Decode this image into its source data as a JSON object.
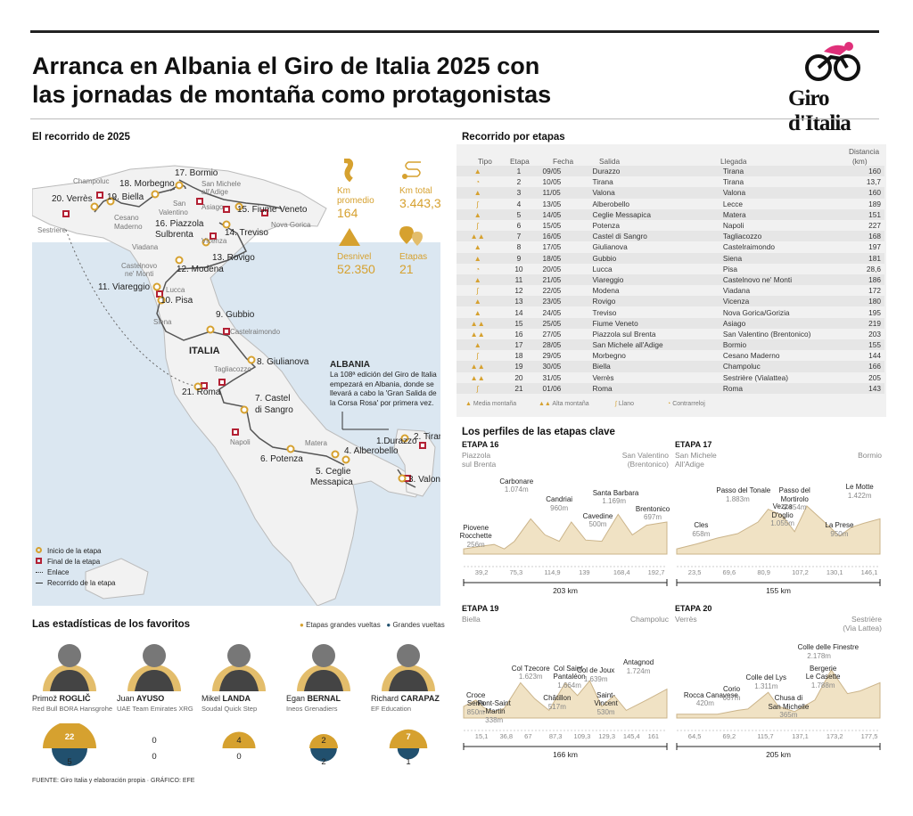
{
  "header": {
    "title_line1": "Arranca en Albania el Giro de Italia 2025 con",
    "title_line2": "las jornadas de montaña como protagonistas",
    "logo_text": "Giro d'Italia"
  },
  "map": {
    "heading": "El recorrido de 2025",
    "stats": {
      "km_avg_label": "Km promedio",
      "km_avg_value": "164",
      "km_total_label": "Km total",
      "km_total_value": "3.443,3",
      "desnivel_label": "Desnivel",
      "desnivel_value": "52.350",
      "etapas_label": "Etapas",
      "etapas_value": "21"
    },
    "country": "ITALIA",
    "albania_title": "ALBANIA",
    "albania_text_1": "La 108ª edición del Giro de Italia",
    "albania_text_2": "empezará en Albania, donde se",
    "albania_text_3": "llevará a cabo la 'Gran Salida de",
    "albania_text_4": "la Corsa Rosa' por primera vez.",
    "labels": {
      "l17": "17. Bormio",
      "l18": "18. Morbegno",
      "l19": "19. Biella",
      "l20": "20. Verrès",
      "l15": "15. Fiume Veneto",
      "l16a": "16. Piazzola",
      "l16b": "Sulbrenta",
      "l14": "14. Treviso",
      "l13": "13. Rovigo",
      "l12": "12. Modena",
      "l11": "11. Viareggio",
      "l10": "10. Pisa",
      "l9": "9. Gubbio",
      "l8": "8. Giulianova",
      "l21": "21. Roma",
      "l7a": "7. Castel",
      "l7b": "di Sangro",
      "l6": "6. Potenza",
      "l5a": "5. Ceglie",
      "l5b": "Messapica",
      "l4": "4. Alberobello",
      "l1": "1.Durazzo",
      "l2": "2. Tirana",
      "l3": "3. Valona"
    },
    "grey_labels": {
      "champoluc": "Champoluc",
      "sestriere": "Sestriere",
      "cesano1": "Cesano",
      "cesano2": "Maderno",
      "sanmichele1": "San Michele",
      "sanmichele2": "all'Adige",
      "sanvalentino1": "San",
      "sanvalentino2": "Valentino",
      "asiago": "Asiago",
      "novagorica": "Nova Gorica",
      "vicenza": "Vicenza",
      "viadana": "Viadana",
      "castelnovo1": "Castelnovo",
      "castelnovo2": "ne' Monti",
      "lucca": "Lucca",
      "siena": "Siena",
      "castelraimondo": "Castelraimondo",
      "tagliacozzo": "Tagliacozzo",
      "napoli": "Napoli",
      "matera": "Matera"
    },
    "legend": {
      "inicio": "Inicio de la etapa",
      "final": "Final de la etapa",
      "enlace": "Enlace",
      "recorrido": "Recorrido de la etapa"
    }
  },
  "stages_table": {
    "heading": "Recorrido por etapas",
    "headers": {
      "tipo": "Tipo",
      "etapa": "Etapa",
      "fecha": "Fecha",
      "salida": "Salida",
      "llegada": "Llegada",
      "dist1": "Distancia",
      "dist2": "(km)"
    },
    "rows": [
      [
        "1",
        "09/05",
        "Durazzo",
        "Tirana",
        "160",
        "m"
      ],
      [
        "2",
        "10/05",
        "Tirana",
        "Tirana",
        "13,7",
        "c"
      ],
      [
        "3",
        "11/05",
        "Valona",
        "Valona",
        "160",
        "m"
      ],
      [
        "4",
        "13/05",
        "Alberobello",
        "Lecce",
        "189",
        "l"
      ],
      [
        "5",
        "14/05",
        "Ceglie Messapica",
        "Matera",
        "151",
        "m"
      ],
      [
        "6",
        "15/05",
        "Potenza",
        "Napoli",
        "227",
        "l"
      ],
      [
        "7",
        "16/05",
        "Castel di Sangro",
        "Tagliacozzo",
        "168",
        "a"
      ],
      [
        "8",
        "17/05",
        "Giulianova",
        "Castelraimondo",
        "197",
        "m"
      ],
      [
        "9",
        "18/05",
        "Gubbio",
        "Siena",
        "181",
        "m"
      ],
      [
        "10",
        "20/05",
        "Lucca",
        "Pisa",
        "28,6",
        "c"
      ],
      [
        "11",
        "21/05",
        "Viareggio",
        "Castelnovo ne' Monti",
        "186",
        "m"
      ],
      [
        "12",
        "22/05",
        "Modena",
        "Viadana",
        "172",
        "l"
      ],
      [
        "13",
        "23/05",
        "Rovigo",
        "Vicenza",
        "180",
        "m"
      ],
      [
        "14",
        "24/05",
        "Treviso",
        "Nova Gorica/Gorizia",
        "195",
        "m"
      ],
      [
        "15",
        "25/05",
        "Fiume Veneto",
        "Asiago",
        "219",
        "a"
      ],
      [
        "16",
        "27/05",
        "Piazzola sul Brenta",
        "San Valentino (Brentonico)",
        "203",
        "a"
      ],
      [
        "17",
        "28/05",
        "San Michele all'Adige",
        "Bormio",
        "155",
        "m"
      ],
      [
        "18",
        "29/05",
        "Morbegno",
        "Cesano Maderno",
        "144",
        "l"
      ],
      [
        "19",
        "30/05",
        "Biella",
        "Champoluc",
        "166",
        "a"
      ],
      [
        "20",
        "31/05",
        "Verrès",
        "Sestrière (Vialattea)",
        "205",
        "a"
      ],
      [
        "21",
        "01/06",
        "Roma",
        "Roma",
        "143",
        "l"
      ]
    ],
    "legend": {
      "media": "Media montaña",
      "alta": "Alta montaña",
      "llano": "Llano",
      "contrarreloj": "Contrarreloj"
    }
  },
  "profiles": {
    "heading": "Los perfiles de las etapas clave",
    "p16": {
      "title": "ETAPA 16",
      "start1": "Piazzola",
      "start2": "sul Brenta",
      "end1": "San Valentino",
      "end2": "(Brentonico)",
      "total": "203 km",
      "peaks": [
        {
          "n1": "Piovene",
          "n2": "Rocchette",
          "h": "256m"
        },
        {
          "n1": "Carbonare",
          "n2": "",
          "h": "1.074m"
        },
        {
          "n1": "Candriai",
          "n2": "",
          "h": "960m"
        },
        {
          "n1": "Cavedine",
          "n2": "",
          "h": "500m"
        },
        {
          "n1": "Santa Barbara",
          "n2": "",
          "h": "1.169m"
        },
        {
          "n1": "Brentonico",
          "n2": "",
          "h": "697m"
        }
      ],
      "kms": [
        "39,2",
        "75,3",
        "114,9",
        "139",
        "168,4",
        "192,7"
      ]
    },
    "p17": {
      "title": "ETAPA 17",
      "start1": "San Michele",
      "start2": "All'Adige",
      "end1": "Bormio",
      "end2": "",
      "total": "155 km",
      "peaks": [
        {
          "n1": "Cles",
          "n2": "",
          "h": "658m"
        },
        {
          "n1": "Passo del Tonale",
          "n2": "",
          "h": "1.883m"
        },
        {
          "n1": "Vezza",
          "n2": "D'oglio",
          "h": "1.055m"
        },
        {
          "n1": "Passo del",
          "n2": "Mortirolo",
          "h": "1.854m"
        },
        {
          "n1": "La Prese",
          "n2": "",
          "h": "950m"
        },
        {
          "n1": "Le Motte",
          "n2": "",
          "h": "1.422m"
        }
      ],
      "kms": [
        "23,5",
        "69,6",
        "80,9",
        "107,2",
        "130,1",
        "146,1"
      ]
    },
    "p19": {
      "title": "ETAPA 19",
      "start1": "Biella",
      "start2": "",
      "end1": "Champoluc",
      "end2": "",
      "total": "166 km",
      "peaks": [
        {
          "n1": "Croce",
          "n2": "Serra",
          "h": "850m"
        },
        {
          "n1": "Pont-Saint",
          "n2": "-Martin",
          "h": "338m"
        },
        {
          "n1": "Col Tzecore",
          "n2": "",
          "h": "1.623m"
        },
        {
          "n1": "Châtillon",
          "n2": "",
          "h": "517m"
        },
        {
          "n1": "Col Saint-",
          "n2": "Pantaléon",
          "h": "1.664m"
        },
        {
          "n1": "Col de Joux",
          "n2": "",
          "h": "1.639m"
        },
        {
          "n1": "Saint-",
          "n2": "Vincent",
          "h": "530m"
        },
        {
          "n1": "Antagnod",
          "n2": "",
          "h": "1.724m"
        }
      ],
      "kms": [
        "15,1",
        "36,8",
        "67",
        "87,3",
        "109,3",
        "129,3",
        "145,4",
        "161"
      ]
    },
    "p20": {
      "title": "ETAPA 20",
      "start1": "Verrès",
      "start2": "",
      "end1": "Sestrière",
      "end2": "(Via Lattea)",
      "total": "205 km",
      "peaks": [
        {
          "n1": "Rocca Canavese",
          "n2": "",
          "h": "420m"
        },
        {
          "n1": "Corio",
          "n2": "",
          "h": "607m"
        },
        {
          "n1": "Colle del Lys",
          "n2": "",
          "h": "1.311m"
        },
        {
          "n1": "Chusa di",
          "n2": "San Michelle",
          "h": "365m"
        },
        {
          "n1": "Colle delle Finestre",
          "n2": "",
          "h": "2.178m"
        },
        {
          "n1": "Bergerie",
          "n2": "Le Casette",
          "h": "1.788m"
        }
      ],
      "kms": [
        "64,5",
        "69,2",
        "115,7",
        "137,1",
        "173,2",
        "177,5"
      ]
    }
  },
  "favorites": {
    "heading": "Las estadísticas de los favoritos",
    "legend_gold": "Etapas grandes vueltas",
    "legend_blue": "Grandes vueltas",
    "riders": [
      {
        "first": "Primož",
        "last": "ROGLIČ",
        "team": "Red Bull BORA Hansgrohe",
        "etapas": "22",
        "gv": "5"
      },
      {
        "first": "Juan",
        "last": "AYUSO",
        "team": "UAE Team Emirates XRG",
        "etapas": "0",
        "gv": "0"
      },
      {
        "first": "Mikel",
        "last": "LANDA",
        "team": "Soudal Quick Step",
        "etapas": "4",
        "gv": "0"
      },
      {
        "first": "Egan",
        "last": "BERNAL",
        "team": "Ineos Grenadiers",
        "etapas": "2",
        "gv": "2"
      },
      {
        "first": "Richard",
        "last": "CARAPAZ",
        "team": "EF Education",
        "etapas": "7",
        "gv": "1"
      }
    ]
  },
  "footer": {
    "source": "FUENTE: Giro Italia y elaboración propia · GRÁFICO: EFE"
  },
  "colors": {
    "gold": "#d6a12f",
    "blue": "#21506e",
    "pink": "#e0307a",
    "route_end": "#b32134",
    "profile_fill": "#f0e2c4",
    "sea": "#cfe0ee"
  }
}
